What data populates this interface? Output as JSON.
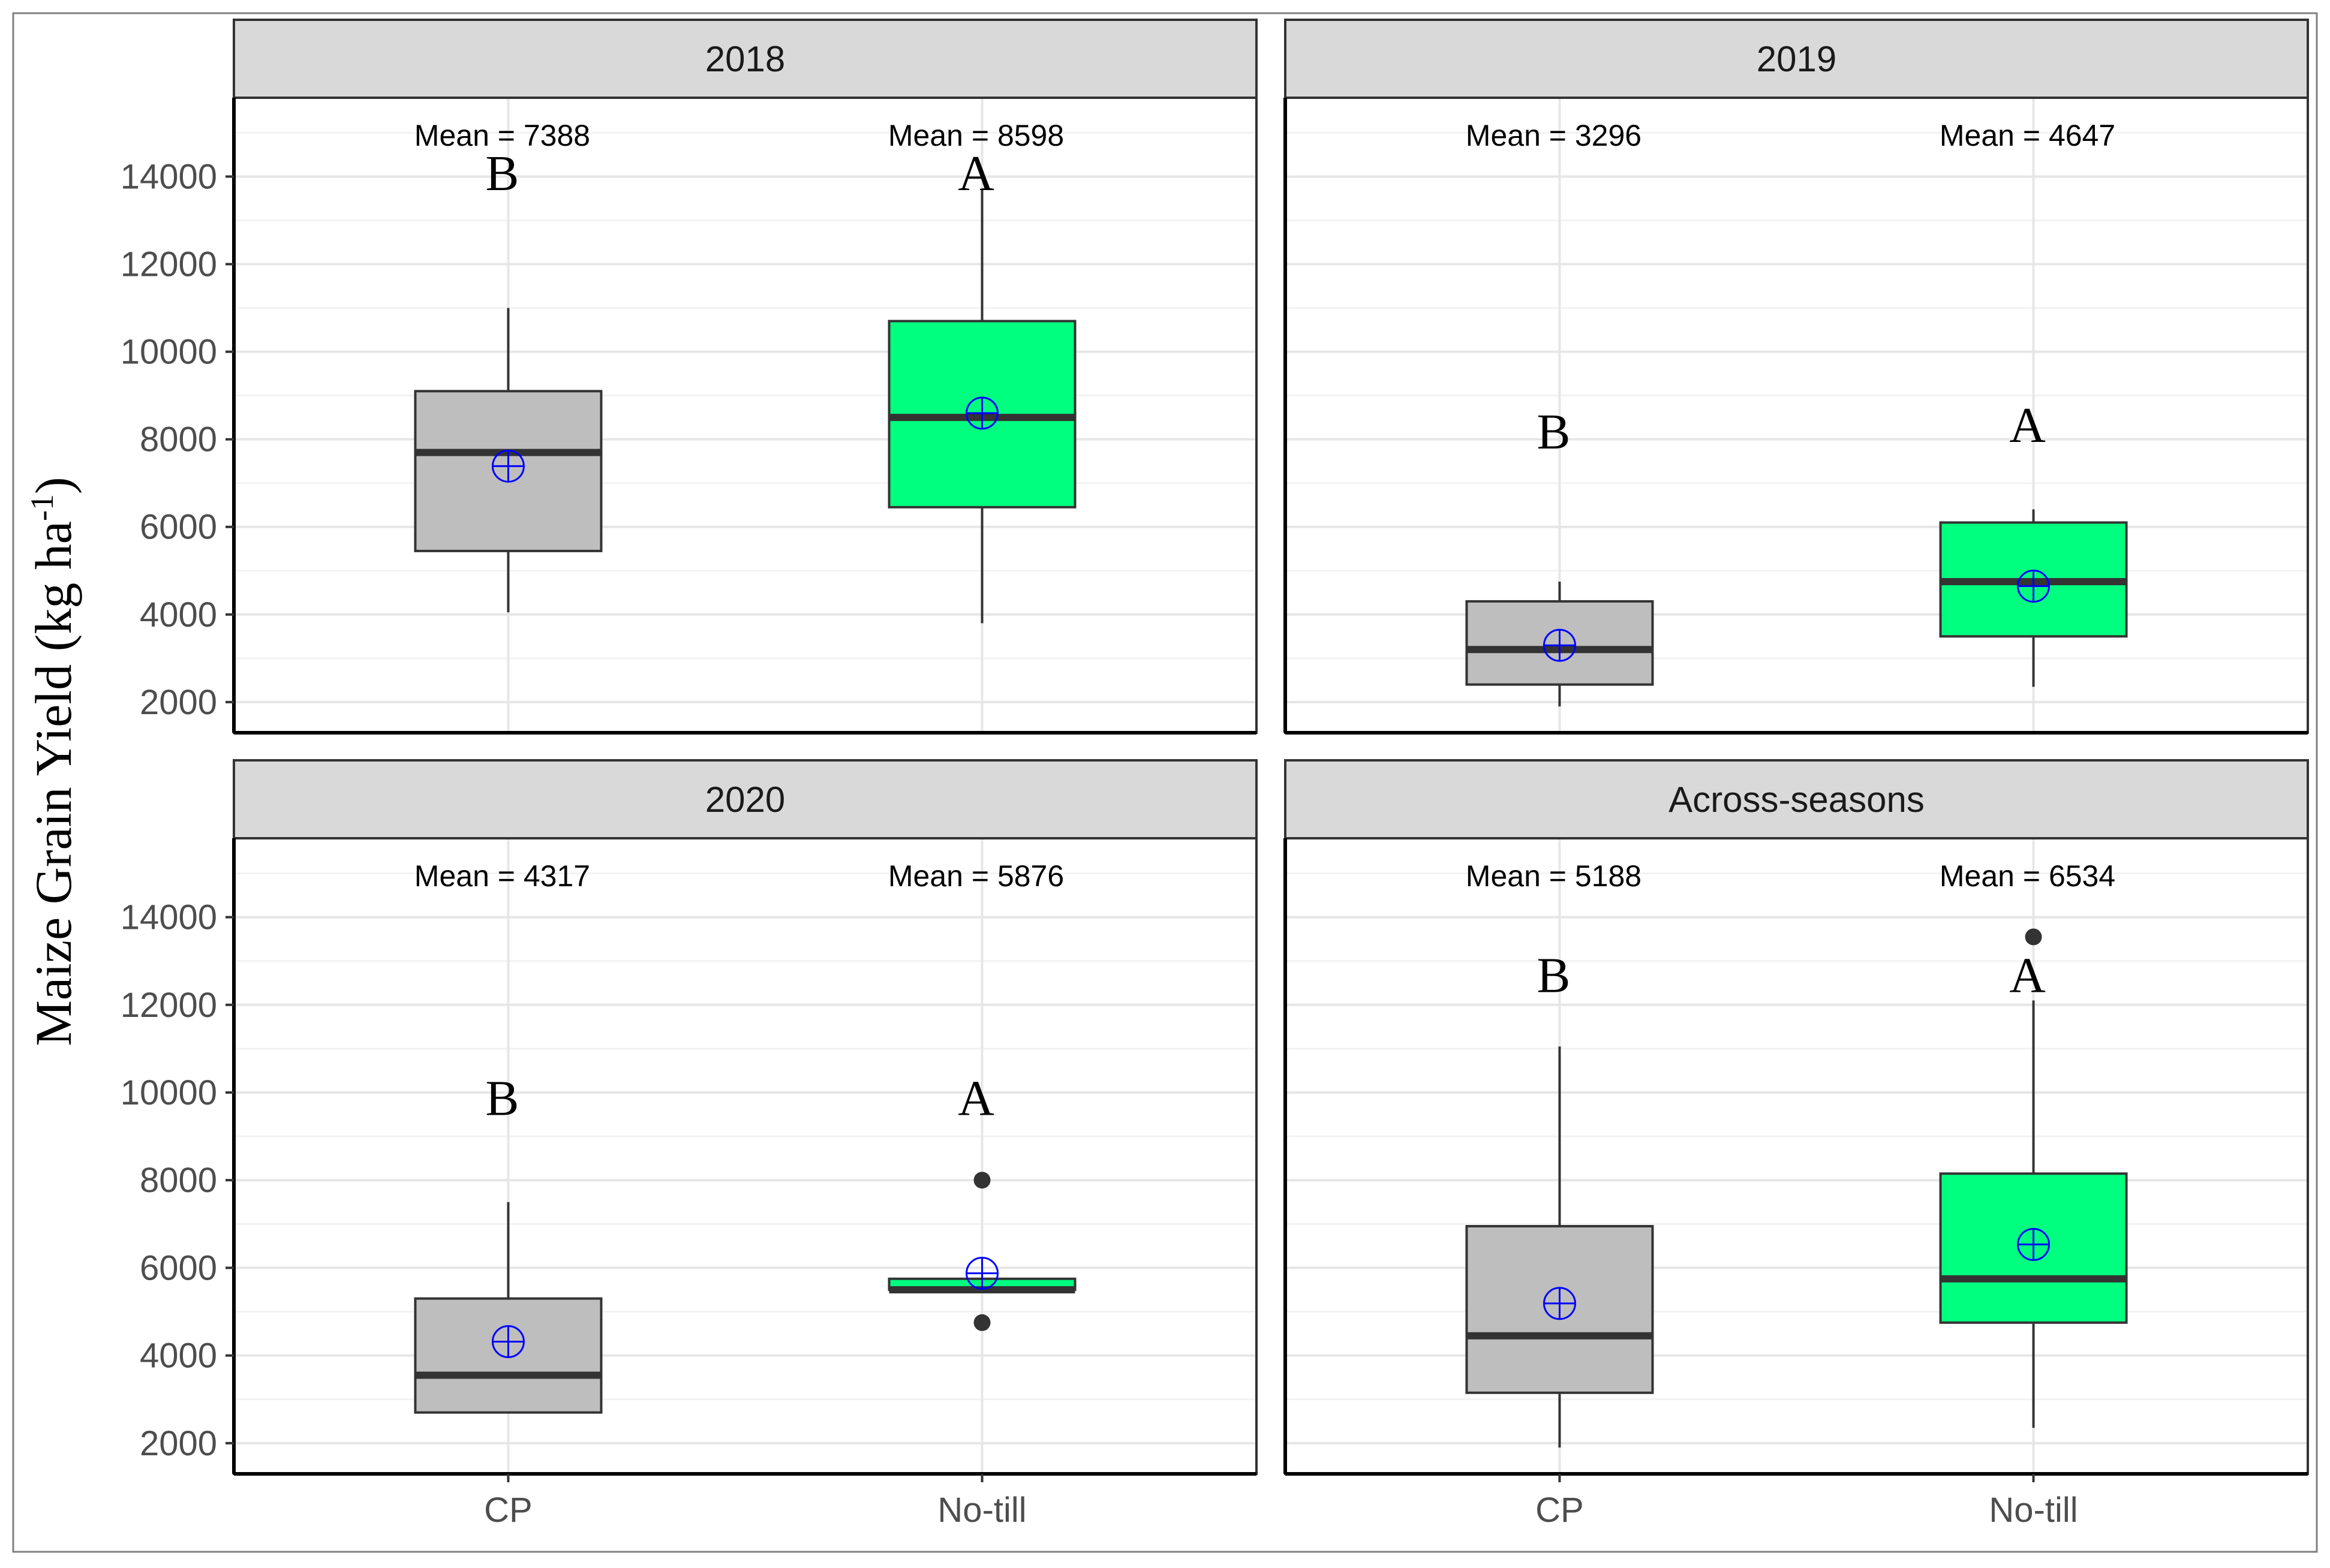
{
  "chart_data": {
    "type": "boxplot",
    "ylabel": "Maize Grain Yield (kg ha",
    "ylabel_sup": "-1",
    "ylabel_close": ")",
    "xlabel": "",
    "ylim": [
      1300,
      15800
    ],
    "yticks": [
      2000,
      4000,
      6000,
      8000,
      10000,
      12000,
      14000
    ],
    "categories": [
      "CP",
      "No-till"
    ],
    "colors": {
      "CP": "#bebebe",
      "No-till": "#00ff7f",
      "mean_marker": "#0000ff",
      "strip": "#d9d9d9"
    },
    "grid": true,
    "panels": [
      {
        "title": "2018",
        "boxes": [
          {
            "category": "CP",
            "min": 4050,
            "q1": 5450,
            "median": 7700,
            "q3": 9100,
            "max": 11000,
            "mean": 7388,
            "outliers": [],
            "mean_label": "Mean = 7388",
            "letter": "B",
            "letter_y": 14100
          },
          {
            "category": "No-till",
            "min": 3800,
            "q1": 6450,
            "median": 8500,
            "q3": 10700,
            "max": 13700,
            "mean": 8598,
            "outliers": [],
            "mean_label": "Mean = 8598",
            "letter": "A",
            "letter_y": 14100
          }
        ]
      },
      {
        "title": "2019",
        "boxes": [
          {
            "category": "CP",
            "min": 1900,
            "q1": 2400,
            "median": 3200,
            "q3": 4300,
            "max": 4750,
            "mean": 3296,
            "outliers": [],
            "mean_label": "Mean = 3296",
            "letter": "B",
            "letter_y": 8200
          },
          {
            "category": "No-till",
            "min": 2350,
            "q1": 3500,
            "median": 4750,
            "q3": 6100,
            "max": 6400,
            "mean": 4647,
            "outliers": [],
            "mean_label": "Mean = 4647",
            "letter": "A",
            "letter_y": 8350
          }
        ]
      },
      {
        "title": "2020",
        "boxes": [
          {
            "category": "CP",
            "min": 2700,
            "q1": 2700,
            "median": 3550,
            "q3": 5300,
            "max": 7500,
            "mean": 4317,
            "outliers": [],
            "mean_label": "Mean = 4317",
            "letter": "B",
            "letter_y": 9900
          },
          {
            "category": "No-till",
            "min": 5450,
            "q1": 5500,
            "median": 5500,
            "q3": 5750,
            "max": 5750,
            "mean": 5876,
            "outliers": [
              8000,
              4750
            ],
            "mean_label": "Mean = 5876",
            "letter": "A",
            "letter_y": 9900
          }
        ]
      },
      {
        "title": "Across-seasons",
        "boxes": [
          {
            "category": "CP",
            "min": 1900,
            "q1": 3150,
            "median": 4450,
            "q3": 6950,
            "max": 11050,
            "mean": 5188,
            "outliers": [],
            "mean_label": "Mean = 5188",
            "letter": "B",
            "letter_y": 12700
          },
          {
            "category": "No-till",
            "min": 2350,
            "q1": 4750,
            "median": 5750,
            "q3": 8150,
            "max": 12100,
            "mean": 6534,
            "outliers": [
              13550
            ],
            "mean_label": "Mean = 6534",
            "letter": "A",
            "letter_y": 12700
          }
        ]
      }
    ]
  }
}
